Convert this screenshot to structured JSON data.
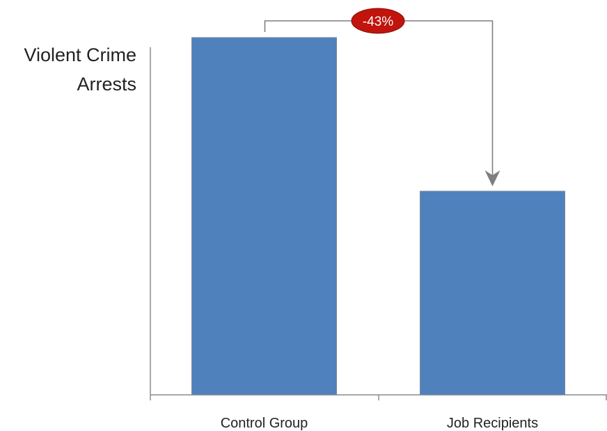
{
  "chart_data": {
    "type": "bar",
    "title": "",
    "ylabel_lines": [
      "Violent Crime",
      "Arrests"
    ],
    "categories": [
      "Control Group",
      "Job Recipients"
    ],
    "values": [
      100,
      57
    ],
    "ylim": [
      0,
      100
    ],
    "y_ticks_shown": false,
    "grid": false,
    "bar_color": "#4f81bd",
    "bar_edge_color": "#7a8a9c",
    "annotation": {
      "text": "-43%",
      "from": "Control Group",
      "to": "Job Recipients",
      "badge_color": "#c0140c",
      "connector_color": "#7f7f7f"
    }
  }
}
